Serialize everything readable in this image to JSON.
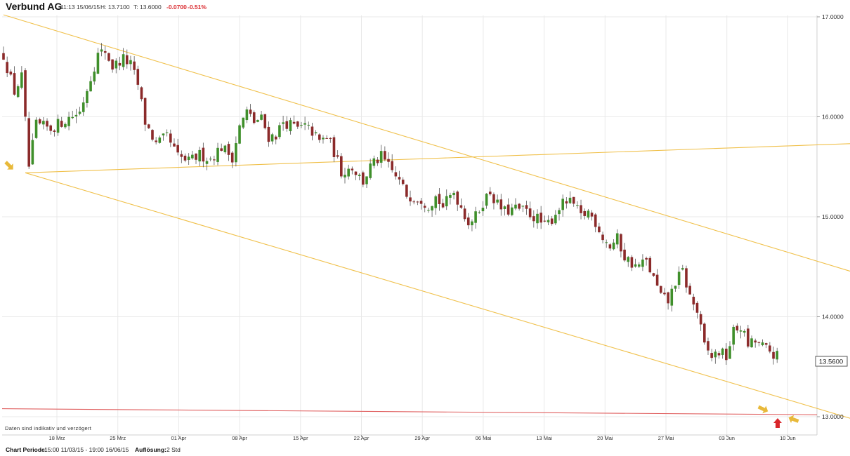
{
  "header": {
    "title": "Verbund AG",
    "time": "11:13 15/06/15",
    "high": "H: 13.7100",
    "low": "T: 13.6000",
    "change": "-0.0700",
    "change_pct": "-0.51%"
  },
  "note": "Daten sind indikativ und verzögert",
  "footer": {
    "period_label": "Chart Periode:",
    "period_value": "15:00 11/03/15 - 19:00 16/06/15",
    "resolution_label": "Auflösung:",
    "resolution_value": "2 Std"
  },
  "colors": {
    "up": "#3f8f2b",
    "down": "#8b2a2a",
    "trend": "#f0c04a",
    "support": "#e06060",
    "grid": "#e9e9e9",
    "arrow_gold": "#e8b93a",
    "arrow_red": "#d9262b"
  },
  "chart_data": {
    "type": "candlestick",
    "title": "Verbund AG",
    "y_ticks": [
      "13.0000",
      "14.0000",
      "15.0000",
      "16.0000",
      "17.0000"
    ],
    "ylim": [
      12.9,
      17.15
    ],
    "x_labels": [
      "18 Mrz",
      "25 Mrz",
      "01 Apr",
      "08 Apr",
      "15 Apr",
      "22 Apr",
      "29 Apr",
      "06 Mai",
      "13 Mai",
      "20 Mai",
      "27 Mai",
      "03 Jun",
      "10 Jun"
    ],
    "last_value": "13.5600",
    "grid": true,
    "close_path": [
      [
        0,
        16.62
      ],
      [
        3,
        16.25
      ],
      [
        5,
        16.4
      ],
      [
        7,
        15.5
      ],
      [
        9,
        15.92
      ],
      [
        13,
        15.88
      ],
      [
        17,
        15.97
      ],
      [
        21,
        16.05
      ],
      [
        24,
        16.4
      ],
      [
        26,
        16.62
      ],
      [
        28,
        16.66
      ],
      [
        30,
        16.5
      ],
      [
        33,
        16.58
      ],
      [
        35,
        16.52
      ],
      [
        37,
        16.32
      ],
      [
        39,
        15.95
      ],
      [
        42,
        15.72
      ],
      [
        45,
        15.8
      ],
      [
        48,
        15.6
      ],
      [
        51,
        15.55
      ],
      [
        54,
        15.62
      ],
      [
        57,
        15.58
      ],
      [
        60,
        15.7
      ],
      [
        63,
        15.6
      ],
      [
        65,
        15.9
      ],
      [
        67,
        16.05
      ],
      [
        69,
        15.95
      ],
      [
        71,
        15.98
      ],
      [
        73,
        15.8
      ],
      [
        75,
        15.82
      ],
      [
        77,
        15.95
      ],
      [
        79,
        15.92
      ],
      [
        81,
        15.88
      ],
      [
        83,
        15.9
      ],
      [
        85,
        15.85
      ],
      [
        87,
        15.75
      ],
      [
        89,
        15.8
      ],
      [
        91,
        15.65
      ],
      [
        93,
        15.45
      ],
      [
        96,
        15.5
      ],
      [
        99,
        15.35
      ],
      [
        101,
        15.5
      ],
      [
        104,
        15.6
      ],
      [
        106,
        15.5
      ],
      [
        109,
        15.35
      ],
      [
        111,
        15.22
      ],
      [
        113,
        15.2
      ],
      [
        115,
        15.18
      ],
      [
        117,
        15.12
      ],
      [
        119,
        15.2
      ],
      [
        121,
        15.1
      ],
      [
        124,
        15.25
      ],
      [
        126,
        15.1
      ],
      [
        128,
        14.95
      ],
      [
        130,
        15.0
      ],
      [
        132,
        15.15
      ],
      [
        134,
        15.25
      ],
      [
        136,
        15.12
      ],
      [
        138,
        15.05
      ],
      [
        141,
        15.08
      ],
      [
        144,
        15.05
      ],
      [
        147,
        14.98
      ],
      [
        149,
        14.9
      ],
      [
        151,
        14.98
      ],
      [
        153,
        15.1
      ],
      [
        155,
        15.15
      ],
      [
        157,
        15.12
      ],
      [
        159,
        15.0
      ],
      [
        161,
        15.05
      ],
      [
        163,
        14.95
      ],
      [
        165,
        14.8
      ],
      [
        167,
        14.7
      ],
      [
        169,
        14.78
      ],
      [
        171,
        14.6
      ],
      [
        174,
        14.5
      ],
      [
        177,
        14.55
      ],
      [
        179,
        14.38
      ],
      [
        181,
        14.2
      ],
      [
        183,
        14.15
      ],
      [
        185,
        14.35
      ],
      [
        187,
        14.45
      ],
      [
        189,
        14.2
      ],
      [
        191,
        14.05
      ],
      [
        193,
        13.7
      ],
      [
        195,
        13.6
      ],
      [
        197,
        13.65
      ],
      [
        199,
        13.6
      ],
      [
        201,
        13.85
      ],
      [
        203,
        13.9
      ],
      [
        205,
        13.72
      ],
      [
        207,
        13.75
      ],
      [
        209,
        13.7
      ],
      [
        211,
        13.65
      ],
      [
        213,
        13.6
      ]
    ],
    "trendlines": [
      {
        "from": [
          0,
          17.02
        ],
        "to": [
          240,
          14.38
        ]
      },
      {
        "from": [
          6,
          15.44
        ],
        "to": [
          240,
          12.91
        ]
      },
      {
        "from": [
          6,
          15.44
        ],
        "to": [
          240,
          15.74
        ]
      }
    ],
    "support_line": {
      "from": [
        0,
        13.08
      ],
      "to": [
        240,
        13.02
      ]
    }
  }
}
